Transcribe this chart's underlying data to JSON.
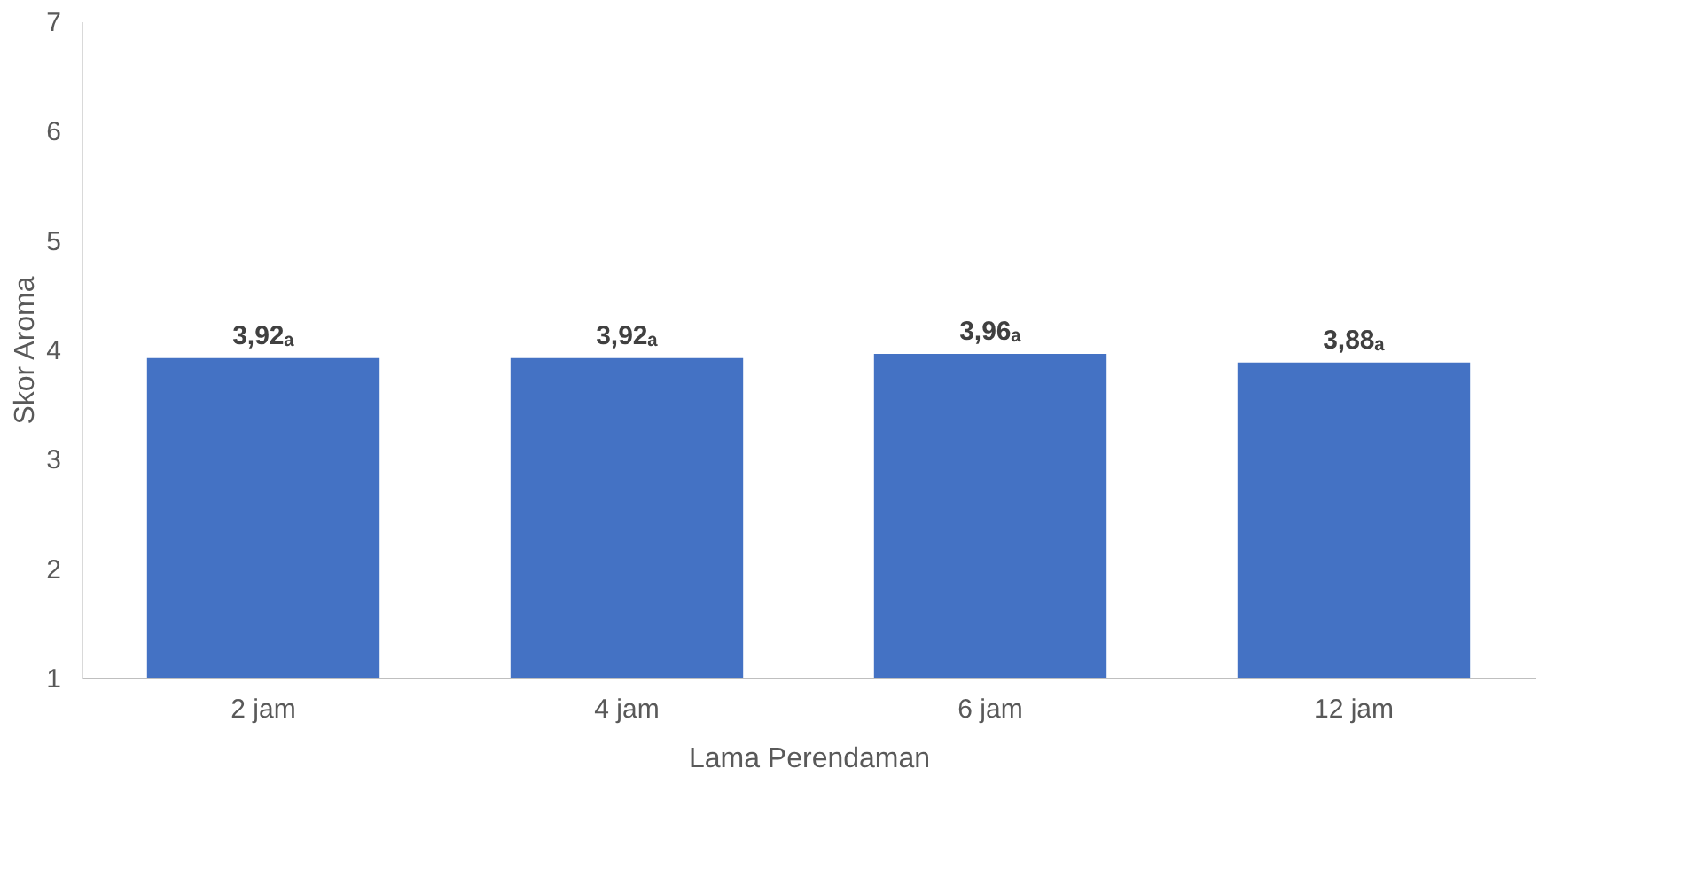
{
  "chart_data": {
    "type": "bar",
    "xlabel": "Lama Perendaman",
    "ylabel": "Skor Aroma",
    "categories": [
      "2 jam",
      "4 jam",
      "6 jam",
      "12 jam"
    ],
    "values": [
      3.92,
      3.92,
      3.96,
      3.88
    ],
    "value_labels": [
      "3,92ₐ",
      "3,92ₐ",
      "3,96ₐ",
      "3,88ₐ"
    ],
    "color": "#4472c4",
    "ylim": [
      1,
      7
    ],
    "yticks": [
      1,
      2,
      3,
      4,
      5,
      6,
      7
    ],
    "grid": false
  }
}
